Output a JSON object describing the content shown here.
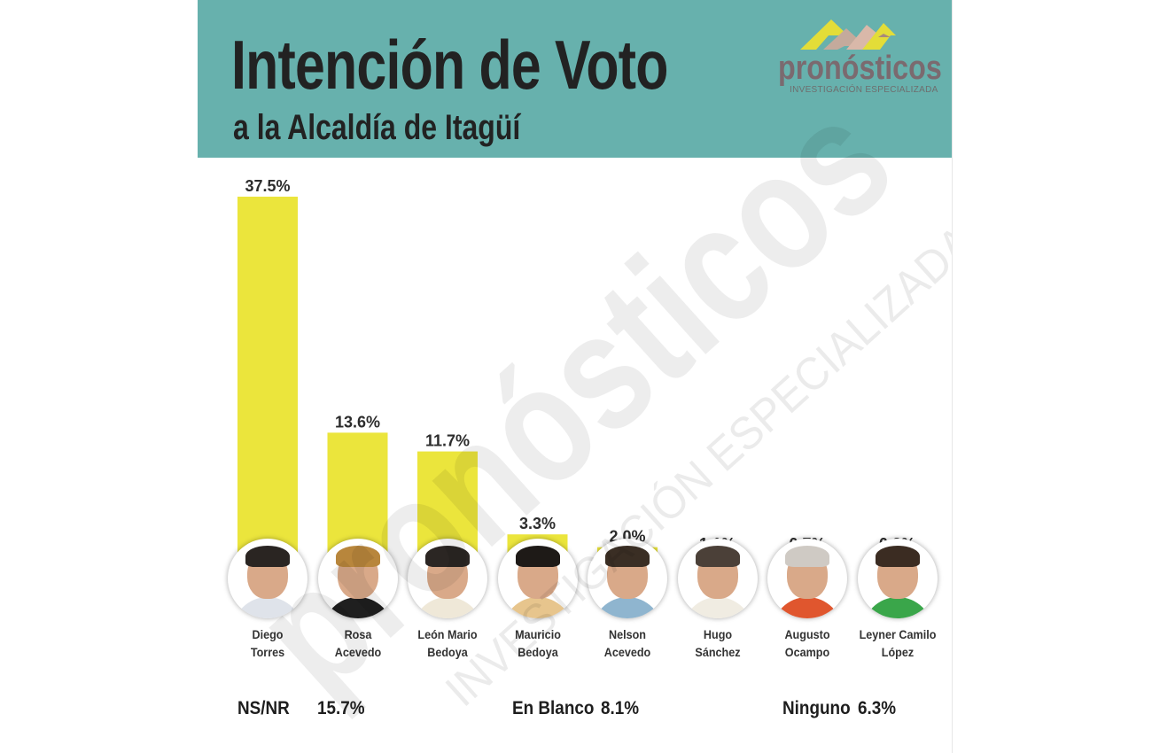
{
  "header": {
    "title": "Intención de Voto",
    "subtitle": "a la Alcaldía de Itagüí",
    "logo_word": "pronósticos",
    "logo_tagline": "INVESTIGACIÓN ESPECIALIZADA"
  },
  "watermark": {
    "word": "pronósticos",
    "tagline": "INVESTIGACIÓN ESPECIALIZADA"
  },
  "colors": {
    "header_bg": "#67b1ad",
    "bar": "#ebe53c",
    "text": "#222222",
    "logo": "#7b6a6f",
    "logo_yellow": "#e3dd38"
  },
  "chart_data": {
    "type": "bar",
    "title": "Intención de Voto",
    "subtitle": "a la Alcaldía de Itagüí",
    "categories": [
      "Diego\nTorres",
      "Rosa\nAcevedo",
      "León Mario\nBedoya",
      "Mauricio\nBedoya",
      "Nelson\nAcevedo",
      "Hugo\nSánchez",
      "Augusto\nOcampo",
      "Leyner Camilo\nLópez"
    ],
    "values": [
      37.5,
      13.6,
      11.7,
      3.3,
      2.0,
      1.1,
      0.7,
      0.2
    ],
    "value_labels": [
      "37.5%",
      "13.6%",
      "11.7%",
      "3.3%",
      "2.0%",
      "1.1%",
      "0.7%",
      "0.2%"
    ],
    "unit": "%",
    "ylim": [
      0,
      37.5
    ],
    "grid": false,
    "legend": "none"
  },
  "avatars": [
    {
      "hair": "#2a2522",
      "shirt": "#dfe3ea"
    },
    {
      "hair": "#b8863c",
      "shirt": "#1f1f1f"
    },
    {
      "hair": "#2b2623",
      "shirt": "#efe8d8"
    },
    {
      "hair": "#1e1a17",
      "shirt": "#e7c58d"
    },
    {
      "hair": "#3a2e24",
      "shirt": "#8fb5cf"
    },
    {
      "hair": "#4b4038",
      "shirt": "#f0ece2"
    },
    {
      "hair": "#cfcac4",
      "shirt": "#e0562e"
    },
    {
      "hair": "#3b2c22",
      "shirt": "#3aa64a"
    }
  ],
  "footer": {
    "nsnr_label": "NS/NR",
    "nsnr_value": "15.7%",
    "blanco_label": "En Blanco",
    "blanco_value": "8.1%",
    "ninguno_label": "Ninguno",
    "ninguno_value": "6.3%"
  }
}
